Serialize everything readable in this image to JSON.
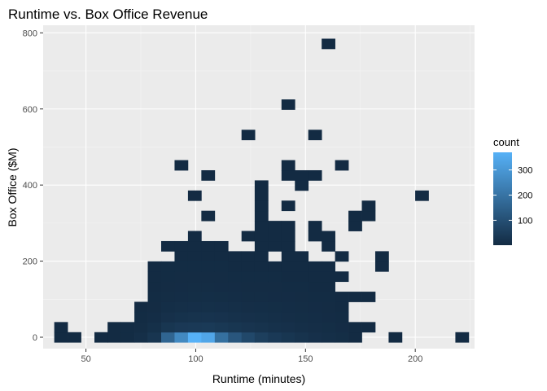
{
  "chart_data": {
    "type": "heatmap",
    "title": "Runtime vs. Box Office Revenue",
    "xlabel": "Runtime (minutes)",
    "ylabel": "Box Office ($M)",
    "xlim": [
      30.5,
      227
    ],
    "ylim": [
      -30,
      820
    ],
    "x_ticks": [
      50,
      100,
      150,
      200
    ],
    "y_ticks": [
      0,
      200,
      400,
      600,
      800
    ],
    "bin_width_x": 6.08,
    "bin_width_y": 26.6,
    "legend": {
      "title": "count",
      "ticks": [
        100,
        200,
        300
      ],
      "range": [
        1,
        370
      ],
      "low_color": "#132b43",
      "high_color": "#56b1f7",
      "position": "right"
    },
    "background_color": "#ebebeb",
    "grid": true,
    "bins": [
      {
        "x": 38.6,
        "y": 0,
        "count": 2
      },
      {
        "x": 38.6,
        "y": 26.6,
        "count": 1
      },
      {
        "x": 44.7,
        "y": 0,
        "count": 1
      },
      {
        "x": 56.9,
        "y": 0,
        "count": 1
      },
      {
        "x": 62.9,
        "y": 26.6,
        "count": 2
      },
      {
        "x": 62.9,
        "y": 0,
        "count": 2
      },
      {
        "x": 69.0,
        "y": 0,
        "count": 3
      },
      {
        "x": 69.0,
        "y": 26.6,
        "count": 3
      },
      {
        "x": 75.1,
        "y": 0,
        "count": 12
      },
      {
        "x": 75.1,
        "y": 26.6,
        "count": 6
      },
      {
        "x": 75.1,
        "y": 53.2,
        "count": 3
      },
      {
        "x": 75.1,
        "y": 79.8,
        "count": 2
      },
      {
        "x": 81.2,
        "y": 0,
        "count": 28
      },
      {
        "x": 81.2,
        "y": 26.6,
        "count": 14
      },
      {
        "x": 81.2,
        "y": 53.2,
        "count": 7
      },
      {
        "x": 81.2,
        "y": 79.8,
        "count": 4
      },
      {
        "x": 81.2,
        "y": 106.4,
        "count": 3
      },
      {
        "x": 81.2,
        "y": 133,
        "count": 2
      },
      {
        "x": 81.2,
        "y": 159.6,
        "count": 2
      },
      {
        "x": 81.2,
        "y": 186.2,
        "count": 1
      },
      {
        "x": 87.3,
        "y": 0,
        "count": 160
      },
      {
        "x": 87.3,
        "y": 26.6,
        "count": 30
      },
      {
        "x": 87.3,
        "y": 53.2,
        "count": 16
      },
      {
        "x": 87.3,
        "y": 79.8,
        "count": 9
      },
      {
        "x": 87.3,
        "y": 106.4,
        "count": 6
      },
      {
        "x": 87.3,
        "y": 133,
        "count": 4
      },
      {
        "x": 87.3,
        "y": 159.6,
        "count": 3
      },
      {
        "x": 87.3,
        "y": 186.2,
        "count": 3
      },
      {
        "x": 87.3,
        "y": 239.4,
        "count": 1
      },
      {
        "x": 93.4,
        "y": 0,
        "count": 260
      },
      {
        "x": 93.4,
        "y": 26.6,
        "count": 38
      },
      {
        "x": 93.4,
        "y": 53.2,
        "count": 20
      },
      {
        "x": 93.4,
        "y": 79.8,
        "count": 11
      },
      {
        "x": 93.4,
        "y": 106.4,
        "count": 7
      },
      {
        "x": 93.4,
        "y": 133,
        "count": 5
      },
      {
        "x": 93.4,
        "y": 159.6,
        "count": 4
      },
      {
        "x": 93.4,
        "y": 186.2,
        "count": 3
      },
      {
        "x": 93.4,
        "y": 212.8,
        "count": 2
      },
      {
        "x": 93.4,
        "y": 239.4,
        "count": 2
      },
      {
        "x": 93.4,
        "y": 452.2,
        "count": 1
      },
      {
        "x": 99.5,
        "y": 0,
        "count": 370
      },
      {
        "x": 99.5,
        "y": 26.6,
        "count": 40
      },
      {
        "x": 99.5,
        "y": 53.2,
        "count": 22
      },
      {
        "x": 99.5,
        "y": 79.8,
        "count": 13
      },
      {
        "x": 99.5,
        "y": 106.4,
        "count": 8
      },
      {
        "x": 99.5,
        "y": 133,
        "count": 6
      },
      {
        "x": 99.5,
        "y": 159.6,
        "count": 4
      },
      {
        "x": 99.5,
        "y": 186.2,
        "count": 3
      },
      {
        "x": 99.5,
        "y": 212.8,
        "count": 2
      },
      {
        "x": 99.5,
        "y": 239.4,
        "count": 2
      },
      {
        "x": 99.5,
        "y": 266,
        "count": 1
      },
      {
        "x": 99.5,
        "y": 372.4,
        "count": 1
      },
      {
        "x": 105.6,
        "y": 0,
        "count": 340
      },
      {
        "x": 105.6,
        "y": 26.6,
        "count": 42
      },
      {
        "x": 105.6,
        "y": 53.2,
        "count": 23
      },
      {
        "x": 105.6,
        "y": 79.8,
        "count": 14
      },
      {
        "x": 105.6,
        "y": 106.4,
        "count": 9
      },
      {
        "x": 105.6,
        "y": 133,
        "count": 6
      },
      {
        "x": 105.6,
        "y": 159.6,
        "count": 4
      },
      {
        "x": 105.6,
        "y": 186.2,
        "count": 3
      },
      {
        "x": 105.6,
        "y": 212.8,
        "count": 2
      },
      {
        "x": 105.6,
        "y": 239.4,
        "count": 2
      },
      {
        "x": 105.6,
        "y": 319.2,
        "count": 1
      },
      {
        "x": 105.6,
        "y": 425.6,
        "count": 1
      },
      {
        "x": 111.7,
        "y": 0,
        "count": 190
      },
      {
        "x": 111.7,
        "y": 26.6,
        "count": 36
      },
      {
        "x": 111.7,
        "y": 53.2,
        "count": 21
      },
      {
        "x": 111.7,
        "y": 79.8,
        "count": 13
      },
      {
        "x": 111.7,
        "y": 106.4,
        "count": 8
      },
      {
        "x": 111.7,
        "y": 133,
        "count": 5
      },
      {
        "x": 111.7,
        "y": 159.6,
        "count": 4
      },
      {
        "x": 111.7,
        "y": 186.2,
        "count": 3
      },
      {
        "x": 111.7,
        "y": 212.8,
        "count": 2
      },
      {
        "x": 111.7,
        "y": 239.4,
        "count": 1
      },
      {
        "x": 117.8,
        "y": 0,
        "count": 120
      },
      {
        "x": 117.8,
        "y": 26.6,
        "count": 30
      },
      {
        "x": 117.8,
        "y": 53.2,
        "count": 18
      },
      {
        "x": 117.8,
        "y": 79.8,
        "count": 11
      },
      {
        "x": 117.8,
        "y": 106.4,
        "count": 7
      },
      {
        "x": 117.8,
        "y": 133,
        "count": 5
      },
      {
        "x": 117.8,
        "y": 159.6,
        "count": 3
      },
      {
        "x": 117.8,
        "y": 186.2,
        "count": 2
      },
      {
        "x": 117.8,
        "y": 212.8,
        "count": 2
      },
      {
        "x": 123.9,
        "y": 0,
        "count": 80
      },
      {
        "x": 123.9,
        "y": 26.6,
        "count": 26
      },
      {
        "x": 123.9,
        "y": 53.2,
        "count": 16
      },
      {
        "x": 123.9,
        "y": 79.8,
        "count": 10
      },
      {
        "x": 123.9,
        "y": 106.4,
        "count": 6
      },
      {
        "x": 123.9,
        "y": 133,
        "count": 4
      },
      {
        "x": 123.9,
        "y": 159.6,
        "count": 3
      },
      {
        "x": 123.9,
        "y": 186.2,
        "count": 2
      },
      {
        "x": 123.9,
        "y": 212.8,
        "count": 2
      },
      {
        "x": 123.9,
        "y": 266,
        "count": 1
      },
      {
        "x": 123.9,
        "y": 532,
        "count": 1
      },
      {
        "x": 129.9,
        "y": 0,
        "count": 55
      },
      {
        "x": 129.9,
        "y": 26.6,
        "count": 22
      },
      {
        "x": 129.9,
        "y": 53.2,
        "count": 14
      },
      {
        "x": 129.9,
        "y": 79.8,
        "count": 9
      },
      {
        "x": 129.9,
        "y": 106.4,
        "count": 6
      },
      {
        "x": 129.9,
        "y": 133,
        "count": 4
      },
      {
        "x": 129.9,
        "y": 159.6,
        "count": 3
      },
      {
        "x": 129.9,
        "y": 186.2,
        "count": 2
      },
      {
        "x": 129.9,
        "y": 212.8,
        "count": 2
      },
      {
        "x": 129.9,
        "y": 239.4,
        "count": 2
      },
      {
        "x": 129.9,
        "y": 266,
        "count": 1
      },
      {
        "x": 129.9,
        "y": 292.6,
        "count": 1
      },
      {
        "x": 129.9,
        "y": 319.2,
        "count": 1
      },
      {
        "x": 129.9,
        "y": 345.8,
        "count": 1
      },
      {
        "x": 129.9,
        "y": 372.4,
        "count": 1
      },
      {
        "x": 129.9,
        "y": 399,
        "count": 1
      },
      {
        "x": 136.0,
        "y": 0,
        "count": 40
      },
      {
        "x": 136.0,
        "y": 26.6,
        "count": 18
      },
      {
        "x": 136.0,
        "y": 53.2,
        "count": 12
      },
      {
        "x": 136.0,
        "y": 79.8,
        "count": 8
      },
      {
        "x": 136.0,
        "y": 106.4,
        "count": 5
      },
      {
        "x": 136.0,
        "y": 133,
        "count": 4
      },
      {
        "x": 136.0,
        "y": 159.6,
        "count": 3
      },
      {
        "x": 136.0,
        "y": 186.2,
        "count": 2
      },
      {
        "x": 136.0,
        "y": 239.4,
        "count": 2
      },
      {
        "x": 136.0,
        "y": 266,
        "count": 1
      },
      {
        "x": 136.0,
        "y": 292.6,
        "count": 1
      },
      {
        "x": 142.1,
        "y": 0,
        "count": 30
      },
      {
        "x": 142.1,
        "y": 26.6,
        "count": 15
      },
      {
        "x": 142.1,
        "y": 53.2,
        "count": 10
      },
      {
        "x": 142.1,
        "y": 79.8,
        "count": 7
      },
      {
        "x": 142.1,
        "y": 106.4,
        "count": 5
      },
      {
        "x": 142.1,
        "y": 133,
        "count": 3
      },
      {
        "x": 142.1,
        "y": 159.6,
        "count": 2
      },
      {
        "x": 142.1,
        "y": 186.2,
        "count": 2
      },
      {
        "x": 142.1,
        "y": 212.8,
        "count": 1
      },
      {
        "x": 142.1,
        "y": 239.4,
        "count": 1
      },
      {
        "x": 142.1,
        "y": 266,
        "count": 1
      },
      {
        "x": 142.1,
        "y": 292.6,
        "count": 1
      },
      {
        "x": 142.1,
        "y": 345.8,
        "count": 1
      },
      {
        "x": 142.1,
        "y": 425.6,
        "count": 1
      },
      {
        "x": 142.1,
        "y": 452.2,
        "count": 1
      },
      {
        "x": 142.1,
        "y": 611.8,
        "count": 1
      },
      {
        "x": 148.2,
        "y": 0,
        "count": 22
      },
      {
        "x": 148.2,
        "y": 26.6,
        "count": 12
      },
      {
        "x": 148.2,
        "y": 53.2,
        "count": 8
      },
      {
        "x": 148.2,
        "y": 79.8,
        "count": 6
      },
      {
        "x": 148.2,
        "y": 106.4,
        "count": 4
      },
      {
        "x": 148.2,
        "y": 133,
        "count": 3
      },
      {
        "x": 148.2,
        "y": 159.6,
        "count": 2
      },
      {
        "x": 148.2,
        "y": 186.2,
        "count": 2
      },
      {
        "x": 148.2,
        "y": 212.8,
        "count": 1
      },
      {
        "x": 148.2,
        "y": 399,
        "count": 1
      },
      {
        "x": 148.2,
        "y": 425.6,
        "count": 1
      },
      {
        "x": 154.3,
        "y": 0,
        "count": 16
      },
      {
        "x": 154.3,
        "y": 26.6,
        "count": 10
      },
      {
        "x": 154.3,
        "y": 53.2,
        "count": 7
      },
      {
        "x": 154.3,
        "y": 79.8,
        "count": 5
      },
      {
        "x": 154.3,
        "y": 106.4,
        "count": 3
      },
      {
        "x": 154.3,
        "y": 133,
        "count": 2
      },
      {
        "x": 154.3,
        "y": 159.6,
        "count": 2
      },
      {
        "x": 154.3,
        "y": 186.2,
        "count": 1
      },
      {
        "x": 154.3,
        "y": 266,
        "count": 1
      },
      {
        "x": 154.3,
        "y": 292.6,
        "count": 1
      },
      {
        "x": 154.3,
        "y": 425.6,
        "count": 1
      },
      {
        "x": 154.3,
        "y": 532,
        "count": 1
      },
      {
        "x": 160.4,
        "y": 0,
        "count": 12
      },
      {
        "x": 160.4,
        "y": 26.6,
        "count": 8
      },
      {
        "x": 160.4,
        "y": 53.2,
        "count": 5
      },
      {
        "x": 160.4,
        "y": 79.8,
        "count": 4
      },
      {
        "x": 160.4,
        "y": 106.4,
        "count": 3
      },
      {
        "x": 160.4,
        "y": 133,
        "count": 2
      },
      {
        "x": 160.4,
        "y": 159.6,
        "count": 1
      },
      {
        "x": 160.4,
        "y": 186.2,
        "count": 1
      },
      {
        "x": 160.4,
        "y": 239.4,
        "count": 1
      },
      {
        "x": 160.4,
        "y": 266,
        "count": 1
      },
      {
        "x": 160.4,
        "y": 771.4,
        "count": 1
      },
      {
        "x": 166.5,
        "y": 0,
        "count": 8
      },
      {
        "x": 166.5,
        "y": 26.6,
        "count": 5
      },
      {
        "x": 166.5,
        "y": 53.2,
        "count": 3
      },
      {
        "x": 166.5,
        "y": 79.8,
        "count": 2
      },
      {
        "x": 166.5,
        "y": 106.4,
        "count": 2
      },
      {
        "x": 166.5,
        "y": 159.6,
        "count": 1
      },
      {
        "x": 166.5,
        "y": 212.8,
        "count": 1
      },
      {
        "x": 166.5,
        "y": 452.2,
        "count": 1
      },
      {
        "x": 172.6,
        "y": 0,
        "count": 2
      },
      {
        "x": 172.6,
        "y": 26.6,
        "count": 2
      },
      {
        "x": 172.6,
        "y": 106.4,
        "count": 1
      },
      {
        "x": 172.6,
        "y": 292.6,
        "count": 1
      },
      {
        "x": 172.6,
        "y": 319.2,
        "count": 1
      },
      {
        "x": 178.7,
        "y": 26.6,
        "count": 1
      },
      {
        "x": 178.7,
        "y": 106.4,
        "count": 1
      },
      {
        "x": 178.7,
        "y": 319.2,
        "count": 1
      },
      {
        "x": 178.7,
        "y": 345.8,
        "count": 1
      },
      {
        "x": 184.8,
        "y": 186.2,
        "count": 1
      },
      {
        "x": 184.8,
        "y": 212.8,
        "count": 1
      },
      {
        "x": 190.9,
        "y": 0,
        "count": 1
      },
      {
        "x": 203.0,
        "y": 372.4,
        "count": 1
      },
      {
        "x": 221.3,
        "y": 0,
        "count": 1
      }
    ]
  }
}
